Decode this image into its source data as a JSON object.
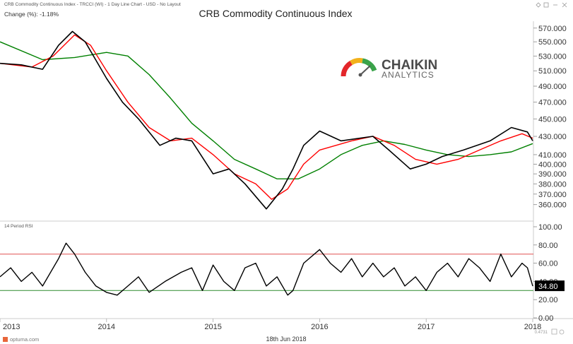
{
  "header": {
    "subtitle": "CRB Commodity Continuous Index - TRCCI (WI) - 1 Day Line Chart - USD - No Layout",
    "change_label": "Change (%): -1.18%",
    "title": "CRB Commodity Continuous Index"
  },
  "logo": {
    "line1": "CHAIKIN",
    "line2": "ANALYTICS"
  },
  "footer": {
    "brand": "optuma.com",
    "date": "18th Jun 2018",
    "corner_value": "0.4731"
  },
  "rsi_panel_label": "14 Period RSI",
  "colors": {
    "price": "#000000",
    "short_ma": "#ff0000",
    "long_ma": "#008000",
    "overbought": "#e05050",
    "oversold": "#2e8b2e"
  },
  "chart_data": [
    {
      "type": "line",
      "title": "CRB Commodity Continuous Index",
      "x_labels": [
        "2013",
        "2014",
        "2015",
        "2016",
        "2017",
        "2018"
      ],
      "y_ticks": [
        360000,
        370000,
        380000,
        390000,
        400000,
        410000,
        430000,
        450000,
        470000,
        490000,
        510000,
        530000,
        550000,
        570000
      ],
      "y_tick_labels": [
        "360.000",
        "370.000",
        "380.000",
        "390.000",
        "400.000",
        "410.000",
        "430.000",
        "450.000",
        "470.000",
        "490.000",
        "510.000",
        "530.000",
        "550.000",
        "570.000"
      ],
      "y_scale": "log",
      "ylim": [
        350000,
        575000
      ],
      "series": [
        {
          "x": [
            2013.0,
            2013.2,
            2013.4,
            2013.55,
            2013.68,
            2013.8,
            2014.0,
            2014.15,
            2014.3,
            2014.5,
            2014.65,
            2014.8,
            2015.0,
            2015.15,
            2015.3,
            2015.5,
            2015.65,
            2015.75,
            2015.85,
            2016.0,
            2016.2,
            2016.5,
            2016.65,
            2016.85,
            2017.0,
            2017.15,
            2017.35,
            2017.6,
            2017.8,
            2017.95,
            2018.0
          ],
          "values": [
            520000,
            518000,
            512000,
            545000,
            565000,
            550000,
            500000,
            470000,
            450000,
            420000,
            428000,
            425000,
            390000,
            395000,
            380000,
            356000,
            375000,
            395000,
            420000,
            436000,
            425000,
            430000,
            415000,
            395000,
            400000,
            408000,
            415000,
            425000,
            440000,
            435000,
            425000
          ]
        },
        {
          "x": [
            2013.0,
            2013.3,
            2013.5,
            2013.7,
            2013.85,
            2014.0,
            2014.2,
            2014.4,
            2014.6,
            2014.8,
            2015.0,
            2015.2,
            2015.4,
            2015.55,
            2015.7,
            2015.85,
            2016.0,
            2016.3,
            2016.5,
            2016.7,
            2016.9,
            2017.1,
            2017.3,
            2017.5,
            2017.7,
            2017.9,
            2018.0
          ],
          "values": [
            520000,
            515000,
            530000,
            560000,
            545000,
            510000,
            470000,
            440000,
            425000,
            428000,
            410000,
            390000,
            380000,
            365000,
            375000,
            400000,
            415000,
            425000,
            430000,
            420000,
            405000,
            400000,
            405000,
            415000,
            425000,
            433000,
            428000
          ]
        },
        {
          "x": [
            2013.0,
            2013.4,
            2013.7,
            2014.0,
            2014.2,
            2014.4,
            2014.6,
            2014.8,
            2015.0,
            2015.2,
            2015.4,
            2015.6,
            2015.8,
            2016.0,
            2016.2,
            2016.4,
            2016.6,
            2016.8,
            2017.0,
            2017.2,
            2017.4,
            2017.6,
            2017.8,
            2018.0
          ],
          "values": [
            550000,
            525000,
            528000,
            535000,
            530000,
            505000,
            475000,
            445000,
            425000,
            405000,
            395000,
            385000,
            385000,
            395000,
            410000,
            420000,
            425000,
            421000,
            415000,
            410000,
            408000,
            410000,
            413000,
            422000
          ]
        }
      ]
    },
    {
      "type": "line",
      "title": "14 Period RSI",
      "y_ticks": [
        0,
        20,
        40,
        60,
        80,
        100
      ],
      "y_tick_labels": [
        "0.00",
        "20.00",
        "40.00",
        "60.00",
        "80.00",
        "100.00"
      ],
      "ylim": [
        0,
        100
      ],
      "reference_lines": [
        70,
        30
      ],
      "last_value_label": "34.80",
      "series": [
        {
          "x": [
            2013.0,
            2013.1,
            2013.2,
            2013.3,
            2013.4,
            2013.55,
            2013.62,
            2013.7,
            2013.8,
            2013.9,
            2014.0,
            2014.1,
            2014.2,
            2014.3,
            2014.4,
            2014.55,
            2014.7,
            2014.8,
            2014.9,
            2015.0,
            2015.1,
            2015.2,
            2015.3,
            2015.4,
            2015.5,
            2015.6,
            2015.7,
            2015.75,
            2015.85,
            2016.0,
            2016.1,
            2016.2,
            2016.3,
            2016.4,
            2016.5,
            2016.6,
            2016.7,
            2016.8,
            2016.9,
            2017.0,
            2017.1,
            2017.2,
            2017.3,
            2017.4,
            2017.5,
            2017.6,
            2017.7,
            2017.8,
            2017.9,
            2017.95,
            2018.0
          ],
          "values": [
            45,
            55,
            40,
            50,
            35,
            65,
            82,
            70,
            50,
            35,
            28,
            25,
            35,
            45,
            28,
            40,
            50,
            55,
            30,
            58,
            40,
            30,
            55,
            60,
            35,
            45,
            25,
            30,
            60,
            75,
            60,
            50,
            65,
            45,
            60,
            45,
            55,
            35,
            45,
            30,
            50,
            60,
            45,
            65,
            55,
            40,
            70,
            45,
            60,
            55,
            34.8
          ]
        }
      ]
    }
  ]
}
